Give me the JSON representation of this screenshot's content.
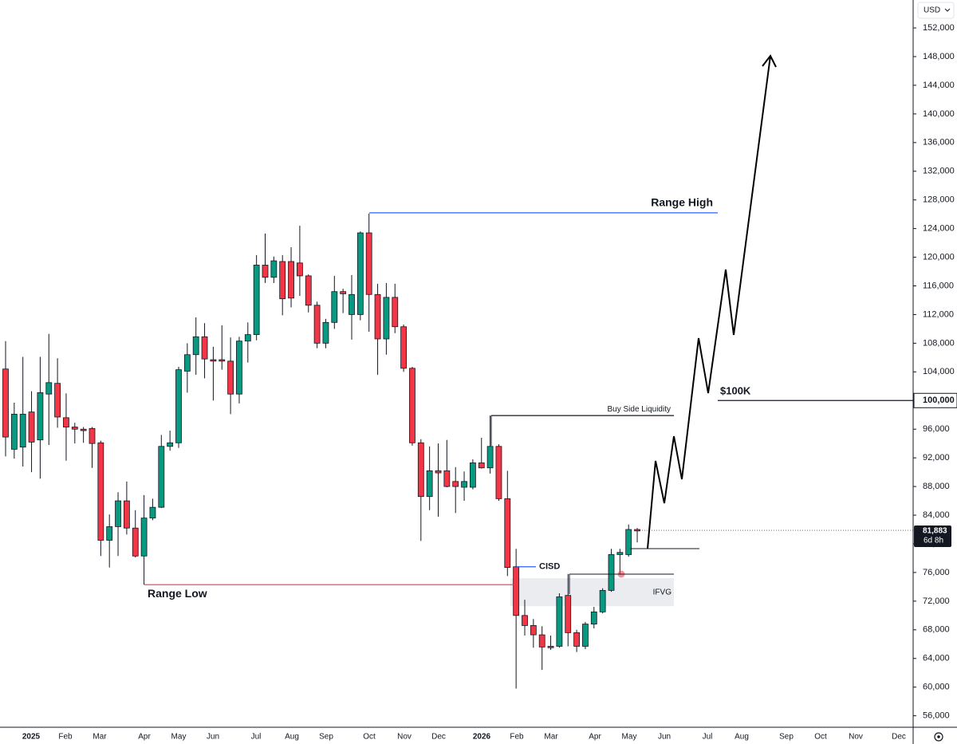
{
  "chart_data": {
    "type": "candlestick",
    "currency": "USD",
    "up_color": "#089981",
    "down_color": "#f23645",
    "ylim": [
      54400,
      155900
    ],
    "yticks": [
      {
        "value": 56000,
        "label": "56,000"
      },
      {
        "value": 60000,
        "label": "60,000"
      },
      {
        "value": 64000,
        "label": "64,000"
      },
      {
        "value": 68000,
        "label": "68,000"
      },
      {
        "value": 72000,
        "label": "72,000"
      },
      {
        "value": 76000,
        "label": "76,000"
      },
      {
        "value": 80000,
        "label": "80,000"
      },
      {
        "value": 84000,
        "label": "84,000"
      },
      {
        "value": 88000,
        "label": "88,000"
      },
      {
        "value": 92000,
        "label": "92,000"
      },
      {
        "value": 96000,
        "label": "96,000"
      },
      {
        "value": 100000,
        "label": "100,000"
      },
      {
        "value": 104000,
        "label": "104,000"
      },
      {
        "value": 108000,
        "label": "108,000"
      },
      {
        "value": 112000,
        "label": "112,000"
      },
      {
        "value": 116000,
        "label": "116,000"
      },
      {
        "value": 120000,
        "label": "120,000"
      },
      {
        "value": 124000,
        "label": "124,000"
      },
      {
        "value": 128000,
        "label": "128,000"
      },
      {
        "value": 132000,
        "label": "132,000"
      },
      {
        "value": 136000,
        "label": "136,000"
      },
      {
        "value": 140000,
        "label": "140,000"
      },
      {
        "value": 144000,
        "label": "144,000"
      },
      {
        "value": 148000,
        "label": "148,000"
      },
      {
        "value": 152000,
        "label": "152,000"
      }
    ],
    "x_labels": [
      "2025",
      "Feb",
      "Mar",
      "Apr",
      "May",
      "Jun",
      "Jul",
      "Aug",
      "Sep",
      "Oct",
      "Nov",
      "Dec",
      "2026",
      "Feb",
      "Mar",
      "Apr",
      "May",
      "Jun",
      "Jul",
      "Aug",
      "Sep",
      "Oct",
      "Nov",
      "Dec"
    ],
    "open": [
      104400,
      93200,
      93500,
      98400,
      94500,
      100900,
      102400,
      97600,
      96300,
      96000,
      96100,
      94100,
      80500,
      82400,
      86000,
      82200,
      78300,
      83600,
      85100,
      93600,
      94100,
      104100,
      106400,
      108900,
      105700,
      105700,
      105500,
      100900,
      108300,
      109200,
      118900,
      117200,
      119400,
      119400,
      119200,
      117400,
      113300,
      108000,
      110900,
      115200,
      112000,
      112000,
      123400,
      114800,
      108600,
      114400,
      110300,
      104500,
      94100,
      86600,
      90200,
      90200,
      88700,
      87900,
      87900,
      91300,
      90600,
      93600,
      86300,
      76800,
      70000,
      68600,
      67300,
      65700,
      65700,
      72800,
      67600,
      65700,
      68800,
      70500,
      73500,
      78500,
      78500,
      82000
    ],
    "high": [
      108300,
      99700,
      106100,
      101300,
      106100,
      109300,
      105900,
      101000,
      96900,
      96300,
      96300,
      94400,
      84100,
      87200,
      88700,
      84700,
      86800,
      86300,
      95200,
      95800,
      104700,
      108000,
      111600,
      110800,
      107500,
      110500,
      108800,
      108900,
      110900,
      120300,
      123300,
      120100,
      120300,
      121400,
      124400,
      117600,
      113800,
      111400,
      117400,
      115600,
      117500,
      123600,
      126100,
      116300,
      116400,
      116300,
      110600,
      104700,
      94600,
      93600,
      94000,
      94500,
      90700,
      90100,
      91800,
      94800,
      97900,
      93900,
      90200,
      79300,
      72200,
      69500,
      68500,
      67200,
      73100,
      75800,
      68000,
      69100,
      71200,
      73800,
      79300,
      79300,
      82700,
      82200
    ],
    "low": [
      92200,
      91900,
      90800,
      90000,
      89100,
      93800,
      96200,
      91600,
      94000,
      94100,
      90600,
      78300,
      76700,
      78300,
      81300,
      78100,
      74300,
      83300,
      85000,
      93000,
      93400,
      101100,
      103600,
      103100,
      100000,
      104300,
      98100,
      99600,
      105300,
      108400,
      116400,
      116400,
      111900,
      113000,
      114600,
      112300,
      107300,
      107300,
      110000,
      112200,
      108500,
      111200,
      109600,
      103600,
      106400,
      109400,
      104000,
      93700,
      80400,
      84700,
      83800,
      87900,
      84300,
      86000,
      87600,
      90500,
      89800,
      86000,
      75500,
      59800,
      67200,
      65500,
      62400,
      65200,
      65500,
      65700,
      64900,
      65300,
      68200,
      70300,
      73300,
      75800,
      78200,
      80200
    ],
    "close": [
      94900,
      98100,
      98100,
      94200,
      101100,
      102500,
      97700,
      96300,
      96000,
      95800,
      94000,
      80500,
      82400,
      86000,
      82200,
      78300,
      83600,
      85100,
      93600,
      94100,
      104300,
      106400,
      108900,
      105800,
      105500,
      105500,
      100900,
      108300,
      109200,
      118900,
      117200,
      119500,
      114200,
      114300,
      117400,
      113300,
      108000,
      110900,
      115200,
      114900,
      114800,
      123400,
      114800,
      108600,
      114400,
      110300,
      104500,
      94100,
      86600,
      90200,
      89900,
      88000,
      88000,
      88700,
      91300,
      90600,
      93600,
      86300,
      76700,
      70000,
      68600,
      67300,
      65600,
      65500,
      72600,
      67600,
      65700,
      68800,
      70500,
      73500,
      78500,
      78800,
      82000,
      81800
    ],
    "last_price": {
      "value": 81883,
      "label": "81,883"
    },
    "countdown": "6d 8h",
    "levels": {
      "range_high": {
        "label": "Range High",
        "value": 126200,
        "color": "#2962ff"
      },
      "range_low": {
        "label": "Range Low",
        "value": 74300,
        "color": "#f23645"
      },
      "buy_side": {
        "label": "Buy Side Liquidity",
        "value": 97900,
        "color": "#131722"
      },
      "target": {
        "label": "$100K",
        "value": 100000,
        "color": "#131722"
      },
      "cisd": {
        "label": "CISD",
        "value": 76800,
        "color": "#2962ff"
      }
    },
    "ifvg": {
      "label": "IFVG",
      "top": 75200,
      "bottom": 71300
    }
  }
}
